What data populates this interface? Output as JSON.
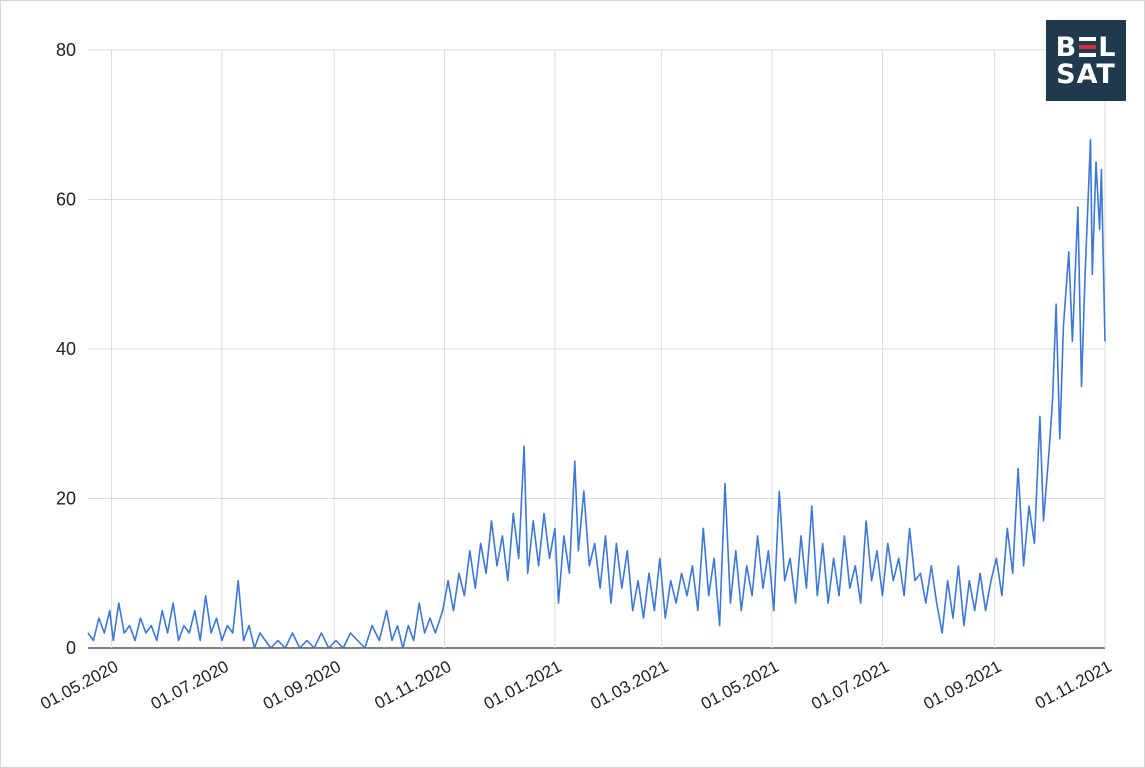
{
  "logo": {
    "line1_left": "B",
    "line1_right": "L",
    "line2": "SAT",
    "text": "BELSAT",
    "bg_color": "#1f3a4d",
    "accent_color": "#d9303a"
  },
  "chart_data": {
    "type": "line",
    "title": "",
    "xlabel": "",
    "ylabel": "",
    "ylim": [
      0,
      80
    ],
    "yticks": [
      "0",
      "20",
      "40",
      "60",
      "80"
    ],
    "xlim": [
      "2020-04-18",
      "2021-11-01"
    ],
    "xticks": [
      {
        "date": "2020-05-01",
        "label": "01.05.2020"
      },
      {
        "date": "2020-07-01",
        "label": "01.07.2020"
      },
      {
        "date": "2020-09-01",
        "label": "01.09.2020"
      },
      {
        "date": "2020-11-01",
        "label": "01.11.2020"
      },
      {
        "date": "2021-01-01",
        "label": "01.01.2021"
      },
      {
        "date": "2021-03-01",
        "label": "01.03.2021"
      },
      {
        "date": "2021-05-01",
        "label": "01.05.2021"
      },
      {
        "date": "2021-07-01",
        "label": "01.07.2021"
      },
      {
        "date": "2021-09-01",
        "label": "01.09.2021"
      },
      {
        "date": "2021-11-01",
        "label": "01.11.2021"
      }
    ],
    "grid": true,
    "line_color": "#3c78d8",
    "series": [
      {
        "points": [
          [
            "2020-04-18",
            2
          ],
          [
            "2020-04-21",
            1
          ],
          [
            "2020-04-24",
            4
          ],
          [
            "2020-04-27",
            2
          ],
          [
            "2020-04-30",
            5
          ],
          [
            "2020-05-02",
            1
          ],
          [
            "2020-05-05",
            6
          ],
          [
            "2020-05-08",
            2
          ],
          [
            "2020-05-11",
            3
          ],
          [
            "2020-05-14",
            1
          ],
          [
            "2020-05-17",
            4
          ],
          [
            "2020-05-20",
            2
          ],
          [
            "2020-05-23",
            3
          ],
          [
            "2020-05-26",
            1
          ],
          [
            "2020-05-29",
            5
          ],
          [
            "2020-06-01",
            2
          ],
          [
            "2020-06-04",
            6
          ],
          [
            "2020-06-07",
            1
          ],
          [
            "2020-06-10",
            3
          ],
          [
            "2020-06-13",
            2
          ],
          [
            "2020-06-16",
            5
          ],
          [
            "2020-06-19",
            1
          ],
          [
            "2020-06-22",
            7
          ],
          [
            "2020-06-25",
            2
          ],
          [
            "2020-06-28",
            4
          ],
          [
            "2020-07-01",
            1
          ],
          [
            "2020-07-04",
            3
          ],
          [
            "2020-07-07",
            2
          ],
          [
            "2020-07-10",
            9
          ],
          [
            "2020-07-13",
            1
          ],
          [
            "2020-07-16",
            3
          ],
          [
            "2020-07-19",
            0
          ],
          [
            "2020-07-22",
            2
          ],
          [
            "2020-07-25",
            1
          ],
          [
            "2020-07-28",
            0
          ],
          [
            "2020-08-01",
            1
          ],
          [
            "2020-08-05",
            0
          ],
          [
            "2020-08-09",
            2
          ],
          [
            "2020-08-13",
            0
          ],
          [
            "2020-08-17",
            1
          ],
          [
            "2020-08-21",
            0
          ],
          [
            "2020-08-25",
            2
          ],
          [
            "2020-08-29",
            0
          ],
          [
            "2020-09-02",
            1
          ],
          [
            "2020-09-06",
            0
          ],
          [
            "2020-09-10",
            2
          ],
          [
            "2020-09-14",
            1
          ],
          [
            "2020-09-18",
            0
          ],
          [
            "2020-09-22",
            3
          ],
          [
            "2020-09-26",
            1
          ],
          [
            "2020-09-30",
            5
          ],
          [
            "2020-10-03",
            1
          ],
          [
            "2020-10-06",
            3
          ],
          [
            "2020-10-09",
            0
          ],
          [
            "2020-10-12",
            3
          ],
          [
            "2020-10-15",
            1
          ],
          [
            "2020-10-18",
            6
          ],
          [
            "2020-10-21",
            2
          ],
          [
            "2020-10-24",
            4
          ],
          [
            "2020-10-27",
            2
          ],
          [
            "2020-10-31",
            5
          ],
          [
            "2020-11-03",
            9
          ],
          [
            "2020-11-06",
            5
          ],
          [
            "2020-11-09",
            10
          ],
          [
            "2020-11-12",
            7
          ],
          [
            "2020-11-15",
            13
          ],
          [
            "2020-11-18",
            8
          ],
          [
            "2020-11-21",
            14
          ],
          [
            "2020-11-24",
            10
          ],
          [
            "2020-11-27",
            17
          ],
          [
            "2020-11-30",
            11
          ],
          [
            "2020-12-03",
            15
          ],
          [
            "2020-12-06",
            9
          ],
          [
            "2020-12-09",
            18
          ],
          [
            "2020-12-12",
            12
          ],
          [
            "2020-12-15",
            27
          ],
          [
            "2020-12-17",
            10
          ],
          [
            "2020-12-20",
            17
          ],
          [
            "2020-12-23",
            11
          ],
          [
            "2020-12-26",
            18
          ],
          [
            "2020-12-29",
            12
          ],
          [
            "2021-01-01",
            16
          ],
          [
            "2021-01-03",
            6
          ],
          [
            "2021-01-06",
            15
          ],
          [
            "2021-01-09",
            10
          ],
          [
            "2021-01-12",
            25
          ],
          [
            "2021-01-14",
            13
          ],
          [
            "2021-01-17",
            21
          ],
          [
            "2021-01-20",
            11
          ],
          [
            "2021-01-23",
            14
          ],
          [
            "2021-01-26",
            8
          ],
          [
            "2021-01-29",
            15
          ],
          [
            "2021-02-01",
            6
          ],
          [
            "2021-02-04",
            14
          ],
          [
            "2021-02-07",
            8
          ],
          [
            "2021-02-10",
            13
          ],
          [
            "2021-02-13",
            5
          ],
          [
            "2021-02-16",
            9
          ],
          [
            "2021-02-19",
            4
          ],
          [
            "2021-02-22",
            10
          ],
          [
            "2021-02-25",
            5
          ],
          [
            "2021-02-28",
            12
          ],
          [
            "2021-03-03",
            4
          ],
          [
            "2021-03-06",
            9
          ],
          [
            "2021-03-09",
            6
          ],
          [
            "2021-03-12",
            10
          ],
          [
            "2021-03-15",
            7
          ],
          [
            "2021-03-18",
            11
          ],
          [
            "2021-03-21",
            5
          ],
          [
            "2021-03-24",
            16
          ],
          [
            "2021-03-27",
            7
          ],
          [
            "2021-03-30",
            12
          ],
          [
            "2021-04-02",
            3
          ],
          [
            "2021-04-05",
            22
          ],
          [
            "2021-04-08",
            6
          ],
          [
            "2021-04-11",
            13
          ],
          [
            "2021-04-14",
            5
          ],
          [
            "2021-04-17",
            11
          ],
          [
            "2021-04-20",
            7
          ],
          [
            "2021-04-23",
            15
          ],
          [
            "2021-04-26",
            8
          ],
          [
            "2021-04-29",
            13
          ],
          [
            "2021-05-02",
            5
          ],
          [
            "2021-05-05",
            21
          ],
          [
            "2021-05-08",
            9
          ],
          [
            "2021-05-11",
            12
          ],
          [
            "2021-05-14",
            6
          ],
          [
            "2021-05-17",
            15
          ],
          [
            "2021-05-20",
            8
          ],
          [
            "2021-05-23",
            19
          ],
          [
            "2021-05-26",
            7
          ],
          [
            "2021-05-29",
            14
          ],
          [
            "2021-06-01",
            6
          ],
          [
            "2021-06-04",
            12
          ],
          [
            "2021-06-07",
            7
          ],
          [
            "2021-06-10",
            15
          ],
          [
            "2021-06-13",
            8
          ],
          [
            "2021-06-16",
            11
          ],
          [
            "2021-06-19",
            6
          ],
          [
            "2021-06-22",
            17
          ],
          [
            "2021-06-25",
            9
          ],
          [
            "2021-06-28",
            13
          ],
          [
            "2021-07-01",
            7
          ],
          [
            "2021-07-04",
            14
          ],
          [
            "2021-07-07",
            9
          ],
          [
            "2021-07-10",
            12
          ],
          [
            "2021-07-13",
            7
          ],
          [
            "2021-07-16",
            16
          ],
          [
            "2021-07-19",
            9
          ],
          [
            "2021-07-22",
            10
          ],
          [
            "2021-07-25",
            6
          ],
          [
            "2021-07-28",
            11
          ],
          [
            "2021-07-31",
            6
          ],
          [
            "2021-08-03",
            2
          ],
          [
            "2021-08-06",
            9
          ],
          [
            "2021-08-09",
            4
          ],
          [
            "2021-08-12",
            11
          ],
          [
            "2021-08-15",
            3
          ],
          [
            "2021-08-18",
            9
          ],
          [
            "2021-08-21",
            5
          ],
          [
            "2021-08-24",
            10
          ],
          [
            "2021-08-27",
            5
          ],
          [
            "2021-08-30",
            9
          ],
          [
            "2021-09-02",
            12
          ],
          [
            "2021-09-05",
            7
          ],
          [
            "2021-09-08",
            16
          ],
          [
            "2021-09-11",
            10
          ],
          [
            "2021-09-14",
            24
          ],
          [
            "2021-09-17",
            11
          ],
          [
            "2021-09-20",
            19
          ],
          [
            "2021-09-23",
            14
          ],
          [
            "2021-09-26",
            31
          ],
          [
            "2021-09-28",
            17
          ],
          [
            "2021-10-01",
            26
          ],
          [
            "2021-10-03",
            33
          ],
          [
            "2021-10-05",
            46
          ],
          [
            "2021-10-07",
            28
          ],
          [
            "2021-10-09",
            43
          ],
          [
            "2021-10-12",
            53
          ],
          [
            "2021-10-14",
            41
          ],
          [
            "2021-10-17",
            59
          ],
          [
            "2021-10-19",
            35
          ],
          [
            "2021-10-21",
            50
          ],
          [
            "2021-10-24",
            68
          ],
          [
            "2021-10-25",
            50
          ],
          [
            "2021-10-27",
            65
          ],
          [
            "2021-10-29",
            56
          ],
          [
            "2021-10-30",
            64
          ],
          [
            "2021-11-01",
            41
          ]
        ]
      }
    ]
  }
}
